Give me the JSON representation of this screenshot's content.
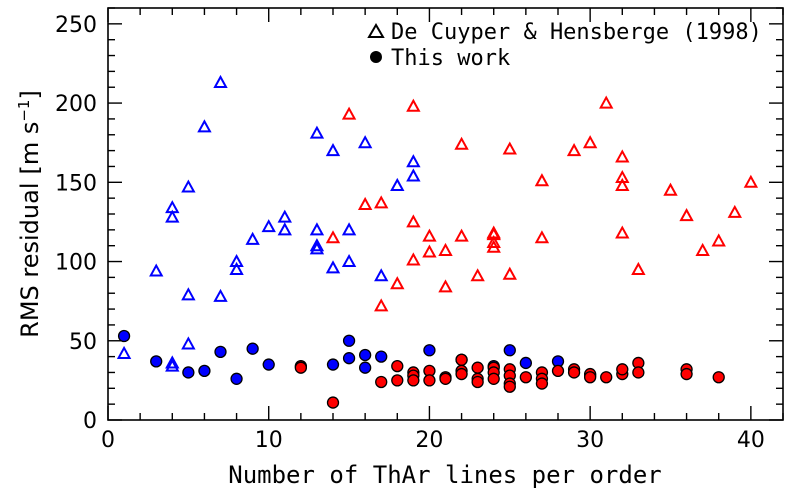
{
  "chart_data": {
    "type": "scatter",
    "title": "",
    "xlabel": "Number of ThAr lines per order",
    "ylabel": {
      "main": "RMS residual",
      "unit_open": "[m s",
      "unit_sup": "−1",
      "unit_close": "]"
    },
    "xlim": [
      0,
      42
    ],
    "ylim": [
      0,
      260
    ],
    "x_ticks": [
      0,
      10,
      20,
      30,
      40
    ],
    "y_ticks": [
      0,
      50,
      100,
      150,
      200,
      250
    ],
    "legend_placement": "top-right",
    "colors": {
      "blue": "#0000ff",
      "red": "#ff0000",
      "black": "#000000"
    },
    "legend": [
      {
        "label": "De Cuyper & Hensberge (1998)",
        "marker": "triangle-open"
      },
      {
        "label": "This work",
        "marker": "circle-filled"
      }
    ],
    "series": [
      {
        "marker": "triangle-open",
        "color": "blue",
        "points": [
          [
            1,
            42
          ],
          [
            3,
            94
          ],
          [
            4,
            36
          ],
          [
            4,
            34
          ],
          [
            4,
            134
          ],
          [
            4,
            128
          ],
          [
            5,
            48
          ],
          [
            5,
            79
          ],
          [
            5,
            147
          ],
          [
            6,
            185
          ],
          [
            7,
            213
          ],
          [
            7,
            78
          ],
          [
            8,
            100
          ],
          [
            8,
            95
          ],
          [
            9,
            114
          ],
          [
            10,
            122
          ],
          [
            11,
            128
          ],
          [
            11,
            120
          ],
          [
            13,
            181
          ],
          [
            13,
            120
          ],
          [
            13,
            110
          ],
          [
            13,
            108
          ],
          [
            14,
            170
          ],
          [
            14,
            96
          ],
          [
            15,
            120
          ],
          [
            15,
            100
          ],
          [
            16,
            175
          ],
          [
            17,
            91
          ],
          [
            18,
            148
          ],
          [
            19,
            163
          ],
          [
            19,
            154
          ]
        ]
      },
      {
        "marker": "triangle-open",
        "color": "red",
        "points": [
          [
            14,
            115
          ],
          [
            15,
            193
          ],
          [
            16,
            136
          ],
          [
            17,
            137
          ],
          [
            17,
            72
          ],
          [
            18,
            86
          ],
          [
            19,
            198
          ],
          [
            19,
            125
          ],
          [
            19,
            101
          ],
          [
            20,
            116
          ],
          [
            20,
            106
          ],
          [
            21,
            107
          ],
          [
            21,
            84
          ],
          [
            22,
            174
          ],
          [
            22,
            116
          ],
          [
            23,
            91
          ],
          [
            24,
            118
          ],
          [
            24,
            117
          ],
          [
            24,
            112
          ],
          [
            24,
            109
          ],
          [
            25,
            171
          ],
          [
            25,
            92
          ],
          [
            27,
            151
          ],
          [
            27,
            115
          ],
          [
            29,
            170
          ],
          [
            30,
            175
          ],
          [
            31,
            200
          ],
          [
            32,
            166
          ],
          [
            32,
            153
          ],
          [
            32,
            148
          ],
          [
            32,
            118
          ],
          [
            33,
            95
          ],
          [
            35,
            145
          ],
          [
            36,
            129
          ],
          [
            37,
            107
          ],
          [
            38,
            113
          ],
          [
            39,
            131
          ],
          [
            40,
            150
          ]
        ]
      },
      {
        "marker": "circle-filled",
        "color": "blue",
        "points": [
          [
            1,
            53
          ],
          [
            3,
            37
          ],
          [
            5,
            30
          ],
          [
            6,
            31
          ],
          [
            7,
            43
          ],
          [
            8,
            26
          ],
          [
            9,
            45
          ],
          [
            10,
            35
          ],
          [
            14,
            35
          ],
          [
            15,
            50
          ],
          [
            15,
            39
          ],
          [
            16,
            41
          ],
          [
            16,
            33
          ],
          [
            17,
            40
          ],
          [
            20,
            44
          ],
          [
            22,
            38
          ],
          [
            24,
            34
          ],
          [
            25,
            44
          ],
          [
            26,
            36
          ],
          [
            28,
            37
          ],
          [
            30,
            28
          ]
        ]
      },
      {
        "marker": "circle-filled",
        "color": "red",
        "points": [
          [
            12,
            34
          ],
          [
            12,
            33
          ],
          [
            14,
            11
          ],
          [
            17,
            24
          ],
          [
            18,
            34
          ],
          [
            18,
            25
          ],
          [
            19,
            30
          ],
          [
            19,
            28
          ],
          [
            19,
            25
          ],
          [
            20,
            31
          ],
          [
            20,
            25
          ],
          [
            21,
            27
          ],
          [
            21,
            26
          ],
          [
            22,
            38
          ],
          [
            22,
            31
          ],
          [
            22,
            29
          ],
          [
            23,
            33
          ],
          [
            23,
            26
          ],
          [
            23,
            24
          ],
          [
            24,
            33
          ],
          [
            24,
            30
          ],
          [
            24,
            26
          ],
          [
            25,
            32
          ],
          [
            25,
            28
          ],
          [
            25,
            23
          ],
          [
            25,
            21
          ],
          [
            26,
            27
          ],
          [
            27,
            30
          ],
          [
            27,
            26
          ],
          [
            27,
            23
          ],
          [
            28,
            31
          ],
          [
            29,
            32
          ],
          [
            29,
            30
          ],
          [
            30,
            29
          ],
          [
            30,
            27
          ],
          [
            31,
            27
          ],
          [
            32,
            29
          ],
          [
            32,
            32
          ],
          [
            33,
            36
          ],
          [
            33,
            30
          ],
          [
            36,
            32
          ],
          [
            36,
            29
          ],
          [
            38,
            27
          ]
        ]
      }
    ]
  }
}
